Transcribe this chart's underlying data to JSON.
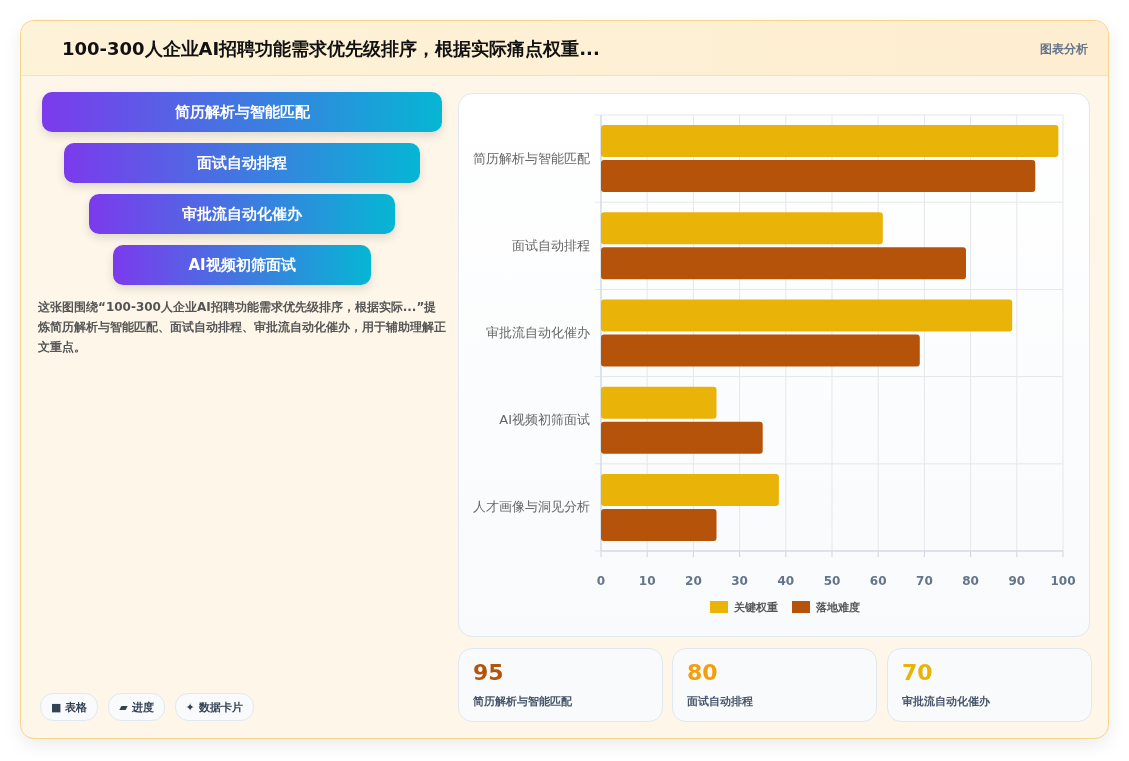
{
  "chart_data": [
    {
      "type": "other",
      "title": "100-300人企业AI招聘功能需求优先级排序，根据实际痛点权重...",
      "subtitle": "图表分析",
      "categories": [
        "简历解析与智能匹配",
        "面试自动排程",
        "审批流自动化催办",
        "AI视频初筛面试"
      ],
      "annotations": [
        "这张图围绕“100-300人企业AI招聘功能需求优先级排序，根据实际...”提炼简历解析与智能匹配、面试自动排程、审批流自动化催办，用于辅助理解正文重点。",
        "■ 表格",
        "▰ 进度",
        "✦ 数据卡片"
      ]
    },
    {
      "type": "bar",
      "orientation": "horizontal",
      "categories": [
        "简历解析与智能匹配",
        "面试自动排程",
        "审批流自动化催办",
        "AI视频初筛面试",
        "人才画像与洞见分析"
      ],
      "series": [
        {
          "name": "关键权重",
          "color": "#eab308",
          "values": [
            99,
            61,
            89,
            25,
            38.5
          ]
        },
        {
          "name": "落地难度",
          "color": "#b45309",
          "values": [
            94,
            79,
            69,
            35,
            25
          ]
        }
      ],
      "xlim": [
        0,
        100
      ],
      "xticks": [
        0,
        10,
        20,
        30,
        40,
        50,
        60,
        70,
        80,
        90,
        100
      ],
      "grid": true,
      "legend": "bottom"
    },
    {
      "type": "other",
      "categories": [
        "简历解析与智能匹配",
        "面试自动排程",
        "审批流自动化催办"
      ],
      "values": [
        95,
        80,
        70
      ],
      "data_labels": true
    }
  ]
}
